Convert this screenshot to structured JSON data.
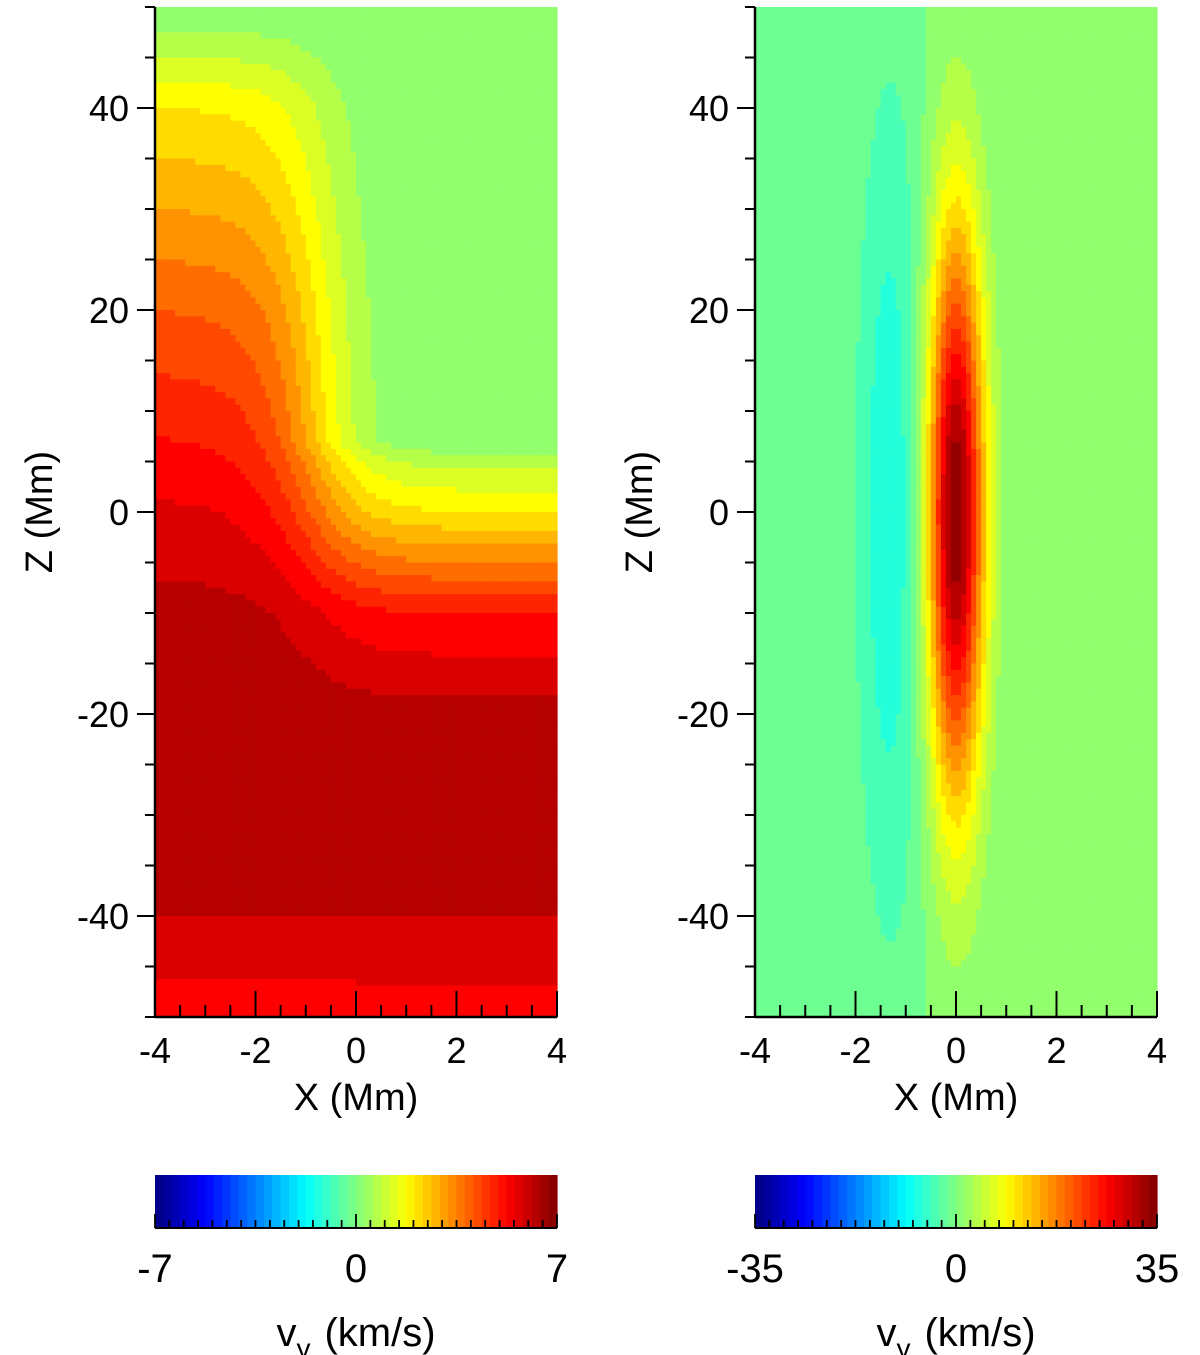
{
  "chart_data": [
    {
      "type": "heatmap",
      "panel": "left",
      "xlabel": "X (Mm)",
      "ylabel": "Z (Mm)",
      "xlim": [
        -4,
        4
      ],
      "ylim": [
        -50,
        50
      ],
      "x_ticks": [
        -4,
        -2,
        0,
        2,
        4
      ],
      "y_ticks": [
        -40,
        -20,
        0,
        20,
        40
      ],
      "x_tick_labels": [
        "-4",
        "-2",
        "0",
        "2",
        "4"
      ],
      "y_tick_labels": [
        "-40",
        "-20",
        "0",
        "20",
        "40"
      ],
      "colorbar": {
        "label_main": "v",
        "label_sub": "y",
        "label_unit": "(km/s)",
        "range": [
          -7,
          7
        ],
        "tick_labels": [
          "-7",
          "0",
          "7"
        ],
        "colormap": "jet"
      },
      "field_description_values": {
        "left_edge_profile_z": [
          -50,
          -45,
          -40,
          -30,
          -20,
          -10,
          0,
          10,
          20,
          30,
          40,
          45,
          50
        ],
        "left_edge_profile_vy": [
          5.2,
          5.6,
          6.0,
          6.5,
          6.5,
          6.2,
          5.6,
          4.8,
          4.0,
          3.0,
          2.0,
          1.0,
          0.0
        ],
        "right_edge_profile_z": [
          -50,
          -45,
          -40,
          -30,
          -20,
          -10,
          0,
          5,
          7,
          10,
          20,
          40,
          50
        ],
        "right_edge_profile_vy": [
          5.3,
          5.6,
          6.0,
          6.5,
          6.2,
          5.0,
          2.0,
          0.8,
          0.0,
          0.0,
          0.0,
          0.0,
          0.0
        ],
        "transition_center_x": -0.8
      }
    },
    {
      "type": "heatmap",
      "panel": "right",
      "xlabel": "X (Mm)",
      "ylabel": "Z (Mm)",
      "xlim": [
        -4,
        4
      ],
      "ylim": [
        -50,
        50
      ],
      "x_ticks": [
        -4,
        -2,
        0,
        2,
        4
      ],
      "y_ticks": [
        -40,
        -20,
        0,
        20,
        40
      ],
      "x_tick_labels": [
        "-4",
        "-2",
        "0",
        "2",
        "4"
      ],
      "y_tick_labels": [
        "-40",
        "-20",
        "0",
        "20",
        "40"
      ],
      "colorbar": {
        "label_main": "v",
        "label_sub": "y",
        "label_unit": "(km/s)",
        "range": [
          -35,
          35
        ],
        "tick_labels": [
          "-35",
          "0",
          "35"
        ],
        "colormap": "jet"
      },
      "field_description_values": {
        "peak_vy": 35,
        "peak_center_x": 0,
        "peak_center_z": 0,
        "peak_halfwidth_x": 0.8,
        "peak_halfwidth_z": 45,
        "min_vy": -7,
        "min_center_x": -1.3,
        "min_center_z": 0
      }
    }
  ]
}
